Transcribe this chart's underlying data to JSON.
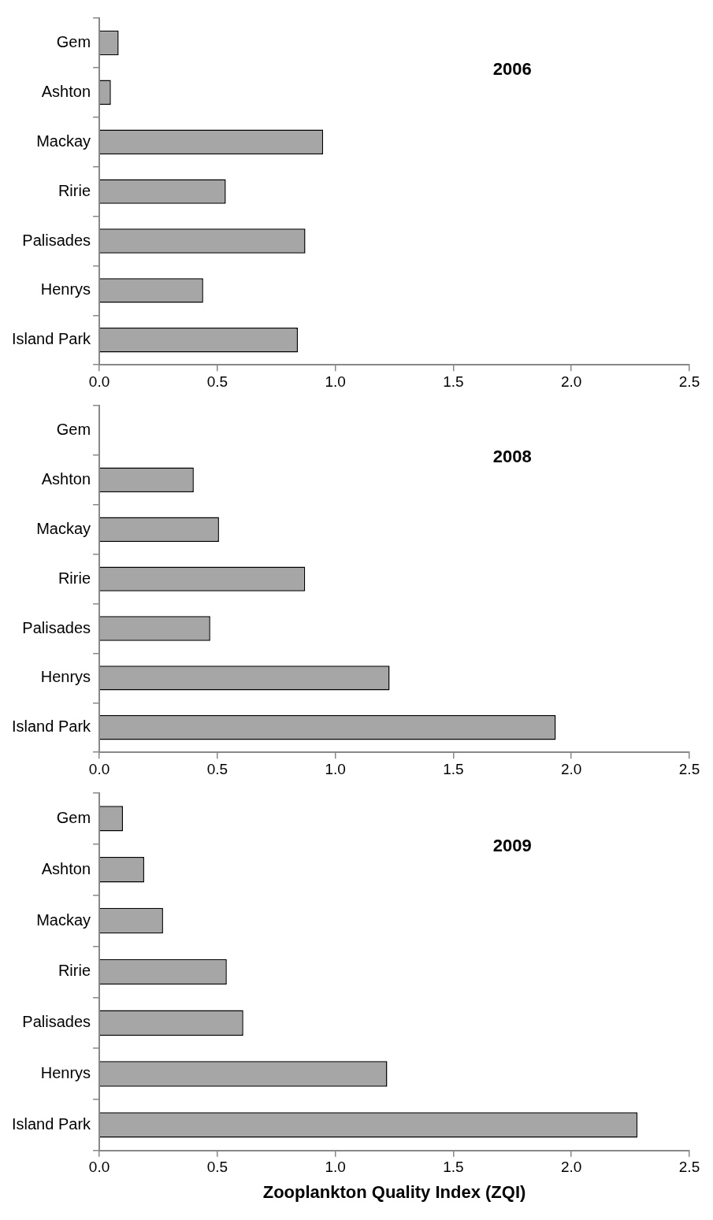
{
  "chart_data": [
    {
      "type": "bar",
      "orientation": "horizontal",
      "categories": [
        "Gem",
        "Ashton",
        "Mackay",
        "Ririe",
        "Palisades",
        "Henrys",
        "Island Park"
      ],
      "values": [
        0.082,
        0.049,
        0.948,
        0.536,
        0.873,
        0.44,
        0.841
      ],
      "color": "#a6a6a6",
      "xlim": [
        0,
        2.5
      ],
      "xticks": [
        {
          "value": 0,
          "label": "0.0"
        },
        0.5,
        {
          "value": 1,
          "label": "1.0"
        },
        1.5,
        {
          "value": 2,
          "label": "2.0"
        },
        2.5
      ],
      "grid": false,
      "legend": false,
      "annotations": [
        "2006"
      ]
    },
    {
      "type": "bar",
      "orientation": "horizontal",
      "categories": [
        "Gem",
        "Ashton",
        "Mackay",
        "Ririe",
        "Palisades",
        "Henrys",
        "Island Park"
      ],
      "values": [
        null,
        0.4,
        0.507,
        0.872,
        0.47,
        1.23,
        1.934
      ],
      "color": "#a6a6a6",
      "xlim": [
        0,
        2.5
      ],
      "xticks": [
        {
          "value": 0,
          "label": "0.0"
        },
        0.5,
        {
          "value": 1,
          "label": "1.0"
        },
        1.5,
        {
          "value": 2,
          "label": "2.0"
        },
        2.5
      ],
      "grid": false,
      "legend": false,
      "annotations": [
        "2008"
      ]
    },
    {
      "type": "bar",
      "orientation": "horizontal",
      "categories": [
        "Gem",
        "Ashton",
        "Mackay",
        "Ririe",
        "Palisades",
        "Henrys",
        "Island Park"
      ],
      "values": [
        0.1,
        0.19,
        0.27,
        0.54,
        0.61,
        1.22,
        2.28
      ],
      "color": "#a6a6a6",
      "xlim": [
        0,
        2.5
      ],
      "xticks": [
        {
          "value": 0,
          "label": "0.0"
        },
        0.5,
        {
          "value": 1,
          "label": "1.0"
        },
        1.5,
        {
          "value": 2,
          "label": "2.0"
        },
        2.5
      ],
      "grid": false,
      "legend": false,
      "annotations": [
        "2009"
      ],
      "xlabel": "Zooplankton Quality Index (ZQI)"
    }
  ]
}
